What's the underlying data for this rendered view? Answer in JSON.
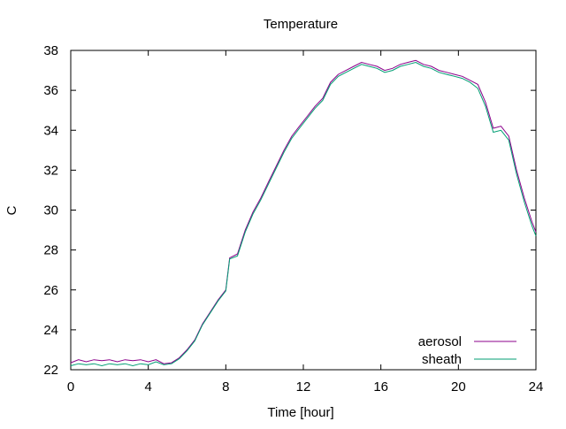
{
  "chart_data": {
    "type": "line",
    "title": "Temperature",
    "xlabel": "Time [hour]",
    "ylabel": "C",
    "xlim": [
      0,
      24
    ],
    "ylim": [
      22,
      38
    ],
    "xticks": [
      0,
      4,
      8,
      12,
      16,
      20,
      24
    ],
    "yticks": [
      22,
      24,
      26,
      28,
      30,
      32,
      34,
      36,
      38
    ],
    "grid": false,
    "legend_position": "bottom-right",
    "series": [
      {
        "name": "aerosol",
        "color": "#8b008b",
        "x": [
          0,
          0.4,
          0.8,
          1.2,
          1.6,
          2.0,
          2.4,
          2.8,
          3.2,
          3.6,
          4.0,
          4.4,
          4.8,
          5.2,
          5.6,
          6.0,
          6.4,
          6.8,
          7.2,
          7.6,
          8.0,
          8.2,
          8.6,
          9.0,
          9.4,
          9.8,
          10.2,
          10.6,
          11.0,
          11.4,
          11.8,
          12.2,
          12.6,
          13.0,
          13.4,
          13.8,
          14.2,
          14.6,
          15.0,
          15.4,
          15.8,
          16.2,
          16.6,
          17.0,
          17.4,
          17.8,
          18.2,
          18.6,
          19.0,
          19.4,
          19.8,
          20.2,
          20.6,
          21.0,
          21.4,
          21.8,
          22.2,
          22.6,
          23.0,
          23.4,
          23.8,
          24.0
        ],
        "y": [
          22.35,
          22.5,
          22.4,
          22.5,
          22.45,
          22.5,
          22.4,
          22.5,
          22.45,
          22.5,
          22.4,
          22.5,
          22.3,
          22.35,
          22.6,
          23.0,
          23.5,
          24.3,
          24.9,
          25.5,
          26.0,
          27.6,
          27.8,
          29.0,
          29.9,
          30.6,
          31.4,
          32.2,
          33.0,
          33.7,
          34.2,
          34.7,
          35.2,
          35.6,
          36.4,
          36.8,
          37.0,
          37.2,
          37.4,
          37.3,
          37.2,
          37.0,
          37.1,
          37.3,
          37.4,
          37.5,
          37.3,
          37.2,
          37.0,
          36.9,
          36.8,
          36.7,
          36.5,
          36.3,
          35.4,
          34.1,
          34.2,
          33.7,
          32.0,
          30.6,
          29.4,
          28.9
        ]
      },
      {
        "name": "sheath",
        "color": "#009e73",
        "x": [
          0,
          0.4,
          0.8,
          1.2,
          1.6,
          2.0,
          2.4,
          2.8,
          3.2,
          3.6,
          4.0,
          4.4,
          4.8,
          5.2,
          5.6,
          6.0,
          6.4,
          6.8,
          7.2,
          7.6,
          8.0,
          8.2,
          8.6,
          9.0,
          9.4,
          9.8,
          10.2,
          10.6,
          11.0,
          11.4,
          11.8,
          12.2,
          12.6,
          13.0,
          13.4,
          13.8,
          14.2,
          14.6,
          15.0,
          15.4,
          15.8,
          16.2,
          16.6,
          17.0,
          17.4,
          17.8,
          18.2,
          18.6,
          19.0,
          19.4,
          19.8,
          20.2,
          20.6,
          21.0,
          21.4,
          21.8,
          22.2,
          22.6,
          23.0,
          23.4,
          23.8,
          24.0
        ],
        "y": [
          22.2,
          22.3,
          22.25,
          22.3,
          22.2,
          22.3,
          22.25,
          22.3,
          22.2,
          22.3,
          22.25,
          22.4,
          22.25,
          22.3,
          22.55,
          22.95,
          23.45,
          24.25,
          24.85,
          25.45,
          25.95,
          27.55,
          27.7,
          28.9,
          29.8,
          30.5,
          31.3,
          32.1,
          32.9,
          33.6,
          34.1,
          34.6,
          35.1,
          35.5,
          36.3,
          36.7,
          36.9,
          37.1,
          37.3,
          37.2,
          37.1,
          36.9,
          37.0,
          37.2,
          37.3,
          37.4,
          37.2,
          37.1,
          36.9,
          36.8,
          36.7,
          36.6,
          36.4,
          36.1,
          35.2,
          33.9,
          34.0,
          33.5,
          31.8,
          30.4,
          29.2,
          28.7
        ]
      }
    ]
  }
}
